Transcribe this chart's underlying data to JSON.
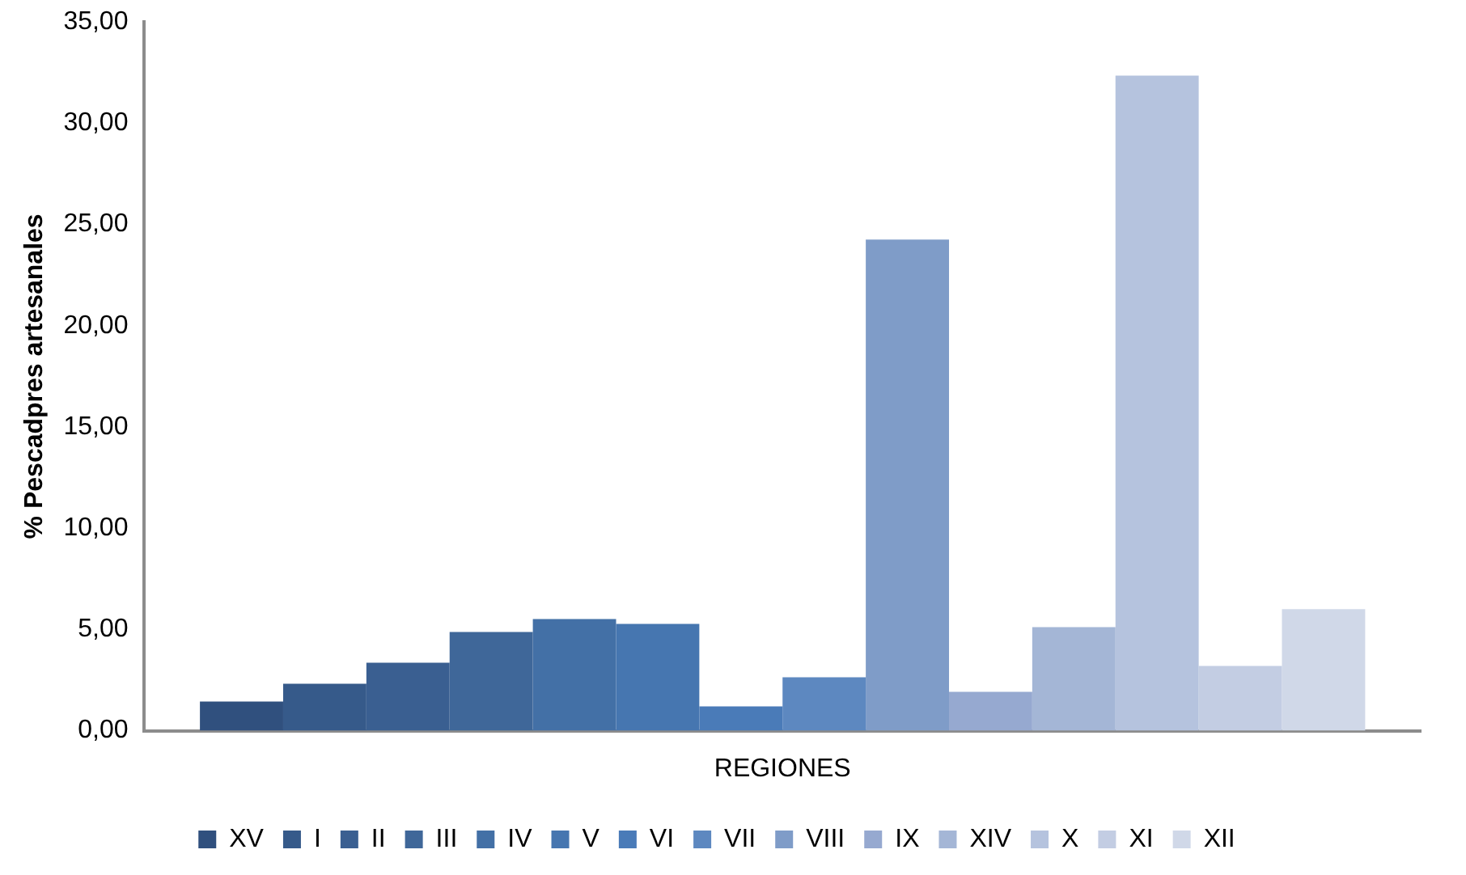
{
  "chart_data": {
    "type": "bar",
    "ylabel": "% Pescadpres artesanales",
    "categories": [
      "REGIONES"
    ],
    "series": [
      {
        "name": "XV",
        "color": "#30507e",
        "values": [
          1.44
        ]
      },
      {
        "name": "I",
        "color": "#365a8a",
        "values": [
          2.32
        ]
      },
      {
        "name": "II",
        "color": "#3a5f91",
        "values": [
          3.36
        ]
      },
      {
        "name": "III",
        "color": "#3f6799",
        "values": [
          4.88
        ]
      },
      {
        "name": "IV",
        "color": "#4370a6",
        "values": [
          5.52
        ]
      },
      {
        "name": "V",
        "color": "#4676b0",
        "values": [
          5.28
        ]
      },
      {
        "name": "VI",
        "color": "#4a7bb8",
        "values": [
          1.2
        ]
      },
      {
        "name": "VII",
        "color": "#5d88c0",
        "values": [
          2.64
        ]
      },
      {
        "name": "VIII",
        "color": "#7f9cc8",
        "values": [
          24.26
        ]
      },
      {
        "name": "IX",
        "color": "#96a9d0",
        "values": [
          1.92
        ]
      },
      {
        "name": "XIV",
        "color": "#a4b6d6",
        "values": [
          5.12
        ]
      },
      {
        "name": "X",
        "color": "#b5c3de",
        "values": [
          32.35
        ]
      },
      {
        "name": "XI",
        "color": "#c3cde3",
        "values": [
          3.2
        ]
      },
      {
        "name": "XII",
        "color": "#d0d8e8",
        "values": [
          6.0
        ]
      }
    ],
    "ylim": [
      0,
      35
    ],
    "yticks": [
      {
        "value": 0,
        "label": "0,00"
      },
      {
        "value": 5,
        "label": "5,00"
      },
      {
        "value": 10,
        "label": "10,00"
      },
      {
        "value": 15,
        "label": "15,00"
      },
      {
        "value": 20,
        "label": "20,00"
      },
      {
        "value": 25,
        "label": "25,00"
      },
      {
        "value": 30,
        "label": "30,00"
      },
      {
        "value": 35,
        "label": "35,00"
      }
    ],
    "grid": false,
    "legend": "bottom"
  }
}
